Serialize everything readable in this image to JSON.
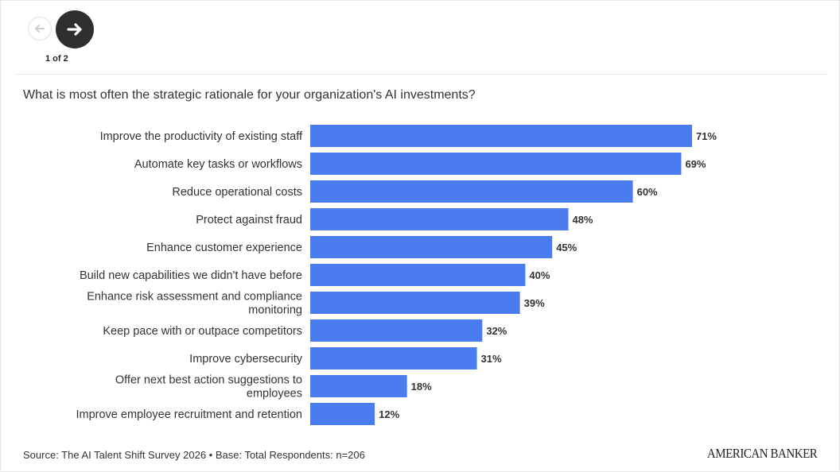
{
  "navigation": {
    "prev_icon": "arrow-left-icon",
    "next_icon": "arrow-right-icon",
    "page_indicator": "1 of 2"
  },
  "question": "What is most often the strategic rationale for your organization's AI investments?",
  "source": "Source: The AI Talent Shift Survey 2026 • Base: Total Respondents: n=206",
  "logo_text": "AMERICAN BANKER",
  "colors": {
    "bar": "#4a7cf0",
    "text": "#333333",
    "nav_dark": "#2f2f2f"
  },
  "chart_data": {
    "type": "bar",
    "orientation": "horizontal",
    "title": "What is most often the strategic rationale for your organization's AI investments?",
    "categories": [
      "Improve the productivity of existing staff",
      "Automate key tasks or workflows",
      "Reduce operational costs",
      "Protect against fraud",
      "Enhance customer experience",
      "Build new capabilities we didn't have before",
      "Enhance risk assessment and compliance monitoring",
      "Keep pace with or outpace competitors",
      "Improve cybersecurity",
      "Offer next best action suggestions to employees",
      "Improve employee recruitment and retention"
    ],
    "values": [
      71,
      69,
      60,
      48,
      45,
      40,
      39,
      32,
      31,
      18,
      12
    ],
    "value_suffix": "%",
    "xlim": [
      0,
      100
    ],
    "grid": false,
    "legend": "none"
  }
}
